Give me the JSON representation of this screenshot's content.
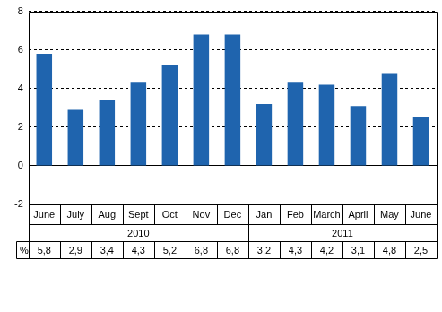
{
  "chart_data": {
    "type": "bar",
    "categories": [
      "June",
      "July",
      "Aug",
      "Sept",
      "Oct",
      "Nov",
      "Dec",
      "Jan",
      "Feb",
      "March",
      "April",
      "May",
      "June"
    ],
    "category_groups": [
      {
        "label": "2010",
        "categories": [
          "June",
          "July",
          "Aug",
          "Sept",
          "Oct",
          "Nov",
          "Dec"
        ]
      },
      {
        "label": "2011",
        "categories": [
          "Jan",
          "Feb",
          "March",
          "April",
          "May",
          "June"
        ]
      }
    ],
    "values": [
      5.8,
      2.9,
      3.4,
      4.3,
      5.2,
      6.8,
      6.8,
      3.2,
      4.3,
      4.2,
      3.1,
      4.8,
      2.5
    ],
    "value_labels": [
      "5,8",
      "2,9",
      "3,4",
      "4,3",
      "5,2",
      "6,8",
      "6,8",
      "3,2",
      "4,3",
      "4,2",
      "3,1",
      "4,8",
      "2,5"
    ],
    "table_label": "%",
    "color": "#1f64ae",
    "ylim": [
      -2,
      8
    ],
    "yticks": [
      -2,
      0,
      2,
      4,
      6,
      8
    ],
    "grid": true
  }
}
